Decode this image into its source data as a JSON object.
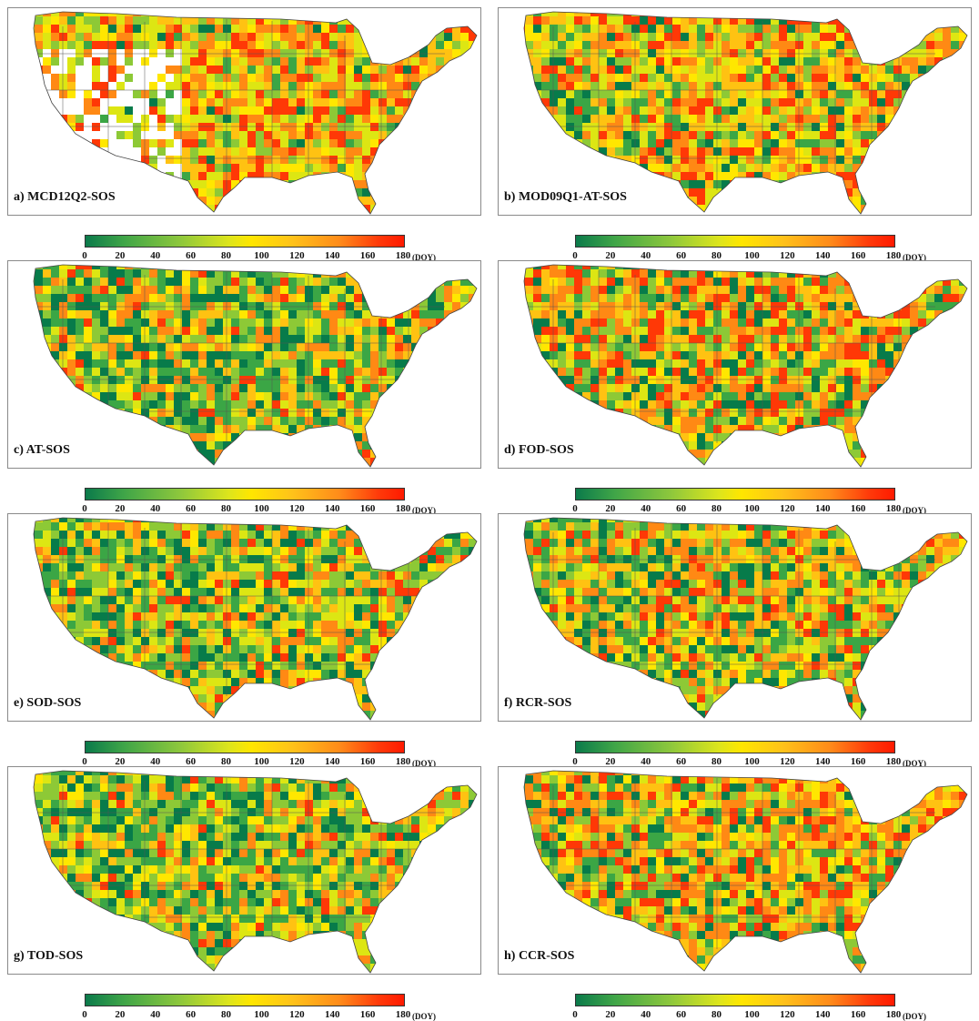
{
  "colorbar": {
    "ticks": [
      "0",
      "20",
      "40",
      "60",
      "80",
      "100",
      "120",
      "140",
      "160",
      "180"
    ],
    "unit": "(DOY)",
    "colors": [
      "#0b7a4b",
      "#3fa548",
      "#8fc83c",
      "#dde51c",
      "#ffe600",
      "#ffc21a",
      "#ff8a1a",
      "#ff3a0a"
    ]
  },
  "panels": [
    {
      "label": "a) MCD12Q2-SOS",
      "palette": "a"
    },
    {
      "label": "b) MOD09Q1-AT-SOS",
      "palette": "b"
    },
    {
      "label": "c) AT-SOS",
      "palette": "c"
    },
    {
      "label": "d) FOD-SOS",
      "palette": "d"
    },
    {
      "label": "e) SOD-SOS",
      "palette": "e"
    },
    {
      "label": "f) RCR-SOS",
      "palette": "f"
    },
    {
      "label": "g) TOD-SOS",
      "palette": "g"
    },
    {
      "label": "h) CCR-SOS",
      "palette": "h"
    }
  ]
}
